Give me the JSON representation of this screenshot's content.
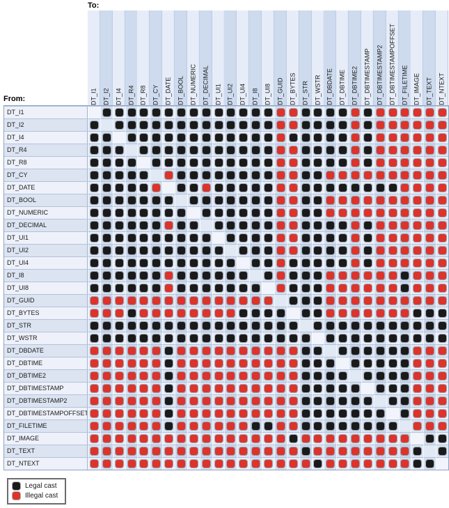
{
  "labels": {
    "to": "To:",
    "from": "From:"
  },
  "legend": {
    "legal": "Legal cast",
    "illegal": "Illegal cast"
  },
  "colors": {
    "legal_dot": "#1a1a1a",
    "illegal_dot": "#dc332b"
  },
  "chart_data": {
    "type": "heatmap",
    "x_label": "To:",
    "y_label": "From:",
    "legend_entries": [
      {
        "label": "Legal cast",
        "symbol": "black rounded dot"
      },
      {
        "label": "Illegal cast",
        "symbol": "red rounded dot"
      }
    ],
    "cell_codes": {
      "L": "legal cast (black dot)",
      "I": "illegal cast (red dot)",
      "D": "same type / diagonal (no dot)"
    },
    "columns": [
      "DT_I1",
      "DT_I2",
      "DT_I4",
      "DT_R4",
      "DT_R8",
      "DT_CY",
      "DT_DATE",
      "DT_BOOL",
      "DT_NUMERIC",
      "DT_DECIMAL",
      "DT_UI1",
      "DT_UI2",
      "DT_UI4",
      "DT_I8",
      "DT_UI8",
      "DT_GUID",
      "DT_BYTES",
      "DT_STR",
      "DT_WSTR",
      "DT_DBDATE",
      "DT_DBTIME",
      "DT_DBTIME2",
      "DT_DBTIMESTAMP",
      "DT_DBTIMESTAMP2",
      "DT_DBTIMESTAMPOFFSET",
      "DT_FILETIME",
      "DT_IMAGE",
      "DT_TEXT",
      "DT_NTEXT"
    ],
    "rows": [
      "DT_I1",
      "DT_I2",
      "DT_I4",
      "DT_R4",
      "DT_R8",
      "DT_CY",
      "DT_DATE",
      "DT_BOOL",
      "DT_NUMERIC",
      "DT_DECIMAL",
      "DT_UI1",
      "DT_UI2",
      "DT_UI4",
      "DT_I8",
      "DT_UI8",
      "DT_GUID",
      "DT_BYTES",
      "DT_STR",
      "DT_WSTR",
      "DT_DBDATE",
      "DT_DBTIME",
      "DT_DBTIME2",
      "DT_DBTIMESTAMP",
      "DT_DBTIMESTAMP2",
      "DT_DBTIMESTAMPOFFSET",
      "DT_FILETIME",
      "DT_IMAGE",
      "DT_TEXT",
      "DT_NTEXT"
    ],
    "matrix": [
      "DLLLLLLLLLLLLLLIILLLLILIIIIII",
      "LDLLLLLLLLLLLLLIILLLLILIIIIII",
      "LLDLLLLLLLLLLLLILLLLLILIIIIII",
      "LLLDLLLLLLLLLLLIILLLLILIIIIII",
      "LLLLDLLLLLLLLLLIILLLLILIIIIII",
      "LLLLLDILLLLLLLLIILLIIIIIIIIII",
      "LLLLLIDLLILLLLLIILLLLLLLLIIII",
      "LLLLLLLDLLLLLLLIILLIIIIIIIIII",
      "LLLLLLLLDLLLLLLIILLIIIIIIIIII",
      "LLLLLLILLDLLLLLIILLLLILIIIIII",
      "LLLLLLLLLLDLLLLIILLLLILIIIIII",
      "LLLLLLLLLLLDLLLIILLLLILIIIIII",
      "LLLLLLLLLLLLDLLILLLLLILIIIIII",
      "LLLLLLILLLLLLDLILLLIIIIIILIII",
      "LLLLLLILLLLLLLDILLLIIIIIILIII",
      "IIIIIIIIIIIIIIIDLLLIIIIIIIIII",
      "IIILIIIIIIIILLLLDLLIIIIIIILLL",
      "LLLLLLLLLLLLLLLLLDLLLLLLLLLLL",
      "LLLLLLLLLLLLLLLLLLDLLLLLLLLLL",
      "IIIIIILIIIIIIIIIILLDLLLLLLIII",
      "IIIIIILIIIIIIIIIILLLDLLLLLIII",
      "IIIIIILIIIIIIIIIILLLLDLLLLIII",
      "IIIIIILIIIIIIIIIILLLLLDLLLIII",
      "IIIIIILIIIIIIIIIILLLLLLDLLIII",
      "IIIIIILIIIIIIIIIILLLLLLLDLIII",
      "IIIIIILIIIIIILLIILLLLLLLLDIII",
      "IIIIIIIIIIIIIIIILIIIIIIIIIDLL",
      "IIIIIIIIIIIIIIIIILIIIIIIIILDL",
      "IIIIIIIIIIIIIIIIIILIIIIIIILLD"
    ]
  }
}
